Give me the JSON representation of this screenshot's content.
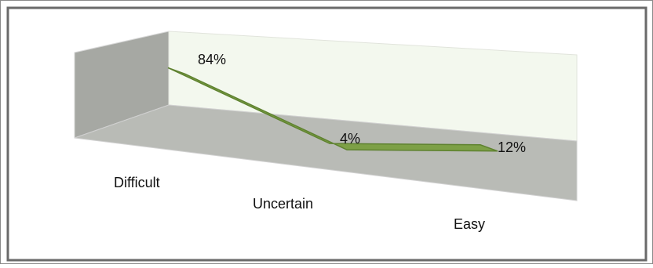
{
  "chart_data": {
    "type": "line",
    "style": "3d-ribbon",
    "categories": [
      "Difficult",
      "Uncertain",
      "Easy"
    ],
    "series": [
      {
        "values": [
          84,
          4,
          12
        ],
        "labels": [
          "84%",
          "4%",
          "12%"
        ]
      }
    ],
    "ylim": [
      0,
      100
    ],
    "grid": false,
    "legend": "none",
    "colors": {
      "ribbon": "#7da046",
      "ribbon_edge": "#5f8230",
      "back_wall": "#f3f8ee",
      "side_wall": "#a6a8a3",
      "floor": "#b9bbb6",
      "frame": "#676767"
    }
  }
}
